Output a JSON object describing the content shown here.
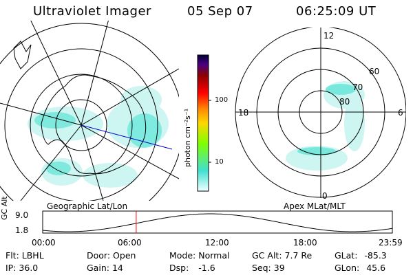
{
  "header": {
    "instrument": "Ultraviolet Imager",
    "date": "05 Sep 07",
    "time": "06:25:09 UT"
  },
  "colorbar": {
    "unit_label": "photon cm⁻²s⁻¹",
    "ticks": [
      "100",
      "10"
    ]
  },
  "left_map": {
    "label": "Geographic Lat/Lon"
  },
  "right_map": {
    "label": "Apex MLat/MLT",
    "mlt_labels": {
      "top": "12",
      "left": "18",
      "right": "6",
      "bottom": "0"
    },
    "lat_labels": [
      "60",
      "70",
      "80"
    ]
  },
  "alt_plot": {
    "ylabel": "GC Alt",
    "y_ticks": [
      "9.0",
      "1.8"
    ],
    "x_ticks": [
      "00:00",
      "06:00",
      "12:00",
      "18:00",
      "23:59"
    ],
    "current_time_marker_hours": 6.42,
    "marker_color": "#ff0000"
  },
  "info": {
    "row1": [
      {
        "label": "Flt:",
        "value": "LBHL"
      },
      {
        "label": "Door:",
        "value": "Open"
      },
      {
        "label": "Mode:",
        "value": "Normal"
      },
      {
        "label": "GC Alt:",
        "value": "7.7 Re"
      },
      {
        "label": "GLat:",
        "value": "-85.3"
      }
    ],
    "row2": [
      {
        "label": "IP:",
        "value": "36.0"
      },
      {
        "label": "Gain:",
        "value": "14"
      },
      {
        "label": "Dsp:",
        "value": "-1.6"
      },
      {
        "label": "Seq:",
        "value": "39"
      },
      {
        "label": "GLon:",
        "value": "45.6"
      }
    ]
  },
  "colors": {
    "aurora": "#40e0d0",
    "colorbar": [
      "#f0ffff",
      "#40e0d0",
      "#7fff00",
      "#ffd700",
      "#ff8c00",
      "#ff0000",
      "#8b0000",
      "#4b0082",
      "#000033"
    ],
    "track_line": "#0000cc"
  }
}
